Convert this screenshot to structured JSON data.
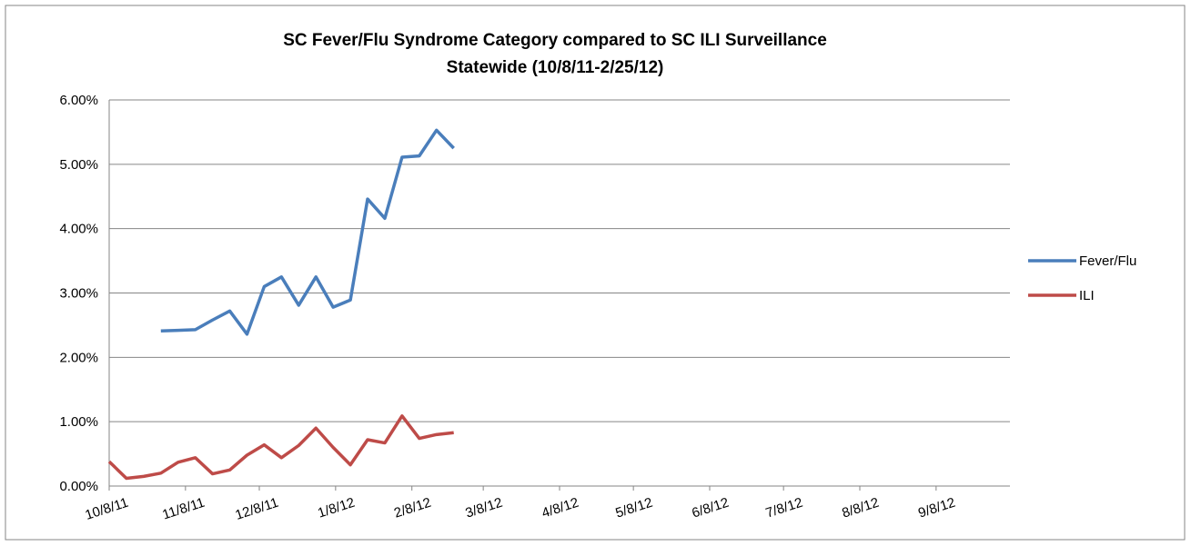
{
  "chart_data": {
    "type": "line",
    "title": [
      "SC Fever/Flu Syndrome Category compared to SC ILI Surveillance",
      "Statewide (10/8/11-2/25/12)"
    ],
    "x": [
      "10/8/11",
      "10/15/11",
      "10/22/11",
      "10/29/11",
      "11/5/11",
      "11/12/11",
      "11/19/11",
      "11/26/11",
      "12/3/11",
      "12/10/11",
      "12/17/11",
      "12/24/11",
      "12/31/11",
      "1/7/12",
      "1/14/12",
      "1/21/12",
      "1/28/12",
      "2/4/12",
      "2/11/12",
      "2/18/12",
      "2/25/12"
    ],
    "series": [
      {
        "name": "Fever/Flu",
        "color": "#4a7ebb",
        "values": [
          null,
          null,
          null,
          2.41,
          2.42,
          2.43,
          2.58,
          2.72,
          2.36,
          3.1,
          3.25,
          2.81,
          3.25,
          2.78,
          2.89,
          4.46,
          4.16,
          5.11,
          5.13,
          5.53,
          5.25
        ]
      },
      {
        "name": "ILI",
        "color": "#be4b48",
        "values": [
          0.38,
          0.12,
          0.15,
          0.2,
          0.37,
          0.44,
          0.19,
          0.25,
          0.48,
          0.64,
          0.44,
          0.63,
          0.9,
          0.6,
          0.33,
          0.72,
          0.67,
          1.09,
          0.74,
          0.8,
          0.83
        ]
      }
    ],
    "xlim": [
      "10/8/11",
      "10/8/12"
    ],
    "xticks": [
      "10/8/11",
      "11/8/11",
      "12/8/11",
      "1/8/12",
      "2/8/12",
      "3/8/12",
      "4/8/12",
      "5/8/12",
      "6/8/12",
      "7/8/12",
      "8/8/12",
      "9/8/12"
    ],
    "ylim": [
      0,
      6
    ],
    "yticks": [
      {
        "value": 0,
        "label": "0.00%"
      },
      {
        "value": 1,
        "label": "1.00%"
      },
      {
        "value": 2,
        "label": "2.00%"
      },
      {
        "value": 3,
        "label": "3.00%"
      },
      {
        "value": 4,
        "label": "4.00%"
      },
      {
        "value": 5,
        "label": "5.00%"
      },
      {
        "value": 6,
        "label": "6.00%"
      }
    ],
    "grid": true,
    "legend": "right"
  }
}
